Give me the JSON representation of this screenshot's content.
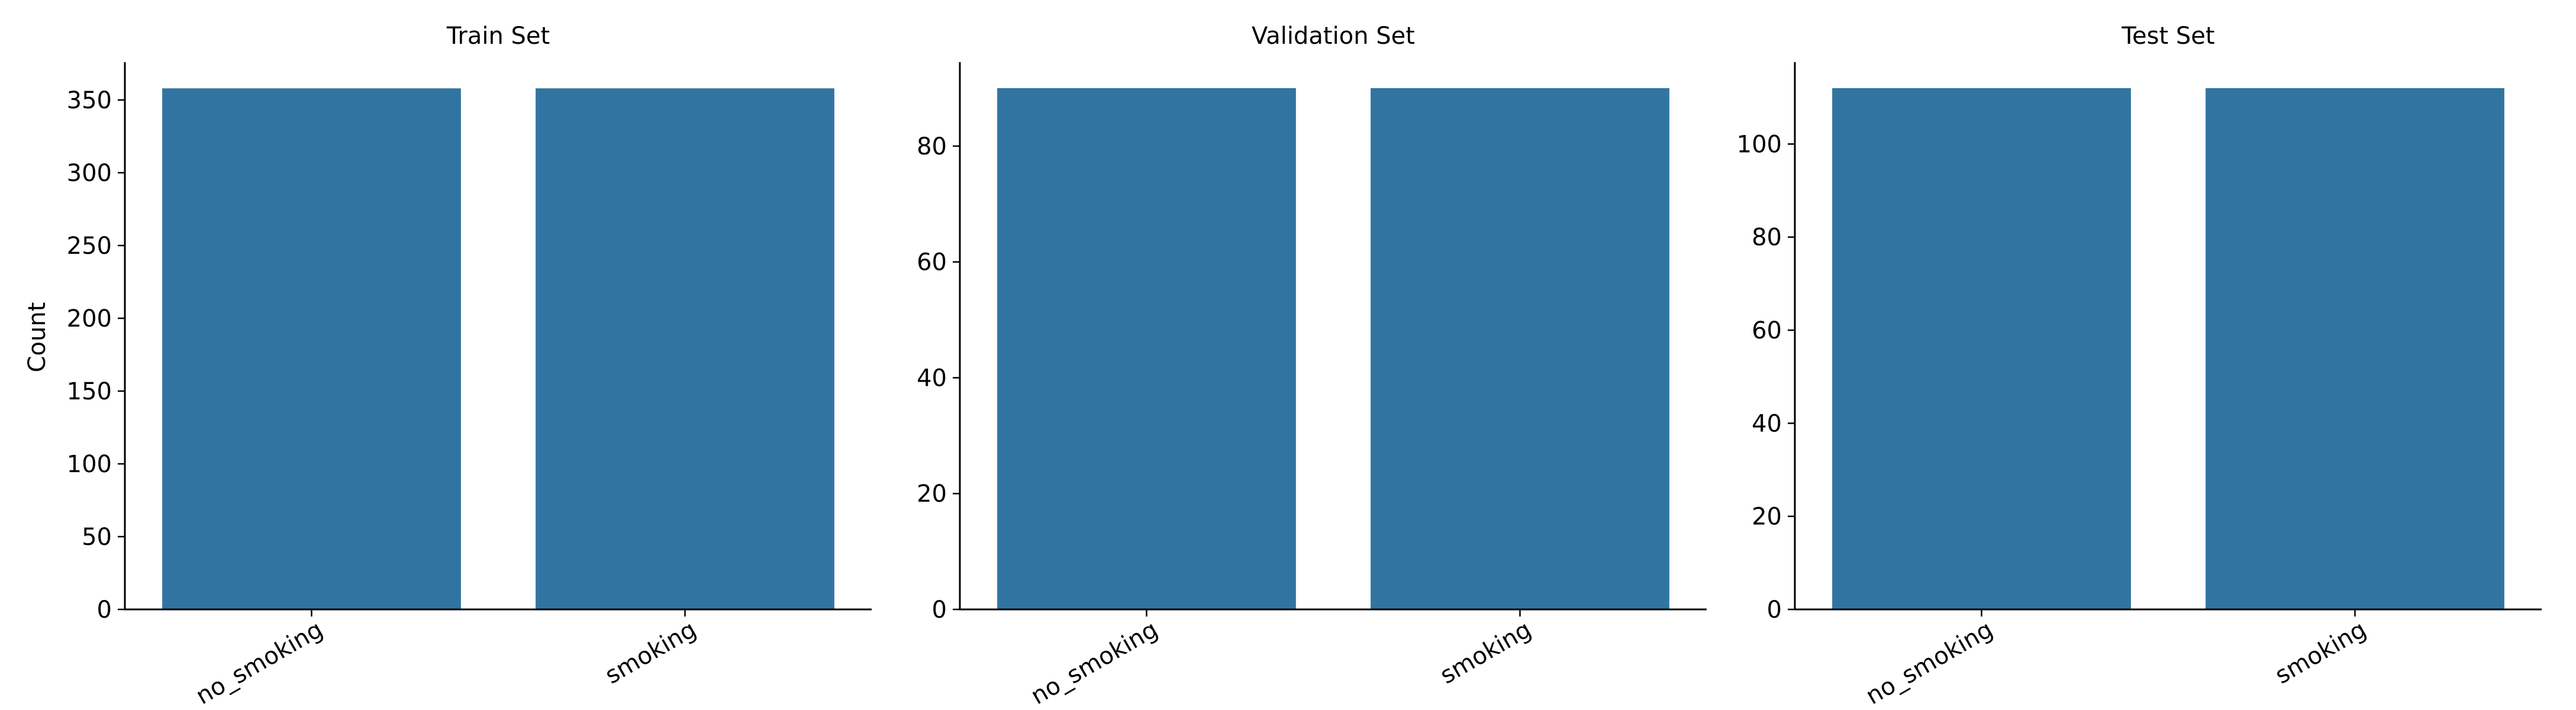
{
  "colors": {
    "bar": "#3274a1",
    "axis": "#000000",
    "background": "#ffffff"
  },
  "chart_data": [
    {
      "type": "bar",
      "title": "Train Set",
      "xlabel": "",
      "ylabel": "Count",
      "categories": [
        "no_smoking",
        "smoking"
      ],
      "values": [
        358,
        358
      ],
      "ylim": [
        0,
        376
      ],
      "yticks": [
        0,
        50,
        100,
        150,
        200,
        250,
        300,
        350
      ],
      "ytick_labels": [
        "0",
        "50",
        "100",
        "150",
        "200",
        "250",
        "300",
        "350"
      ],
      "grid": false,
      "legend": "none"
    },
    {
      "type": "bar",
      "title": "Validation Set",
      "xlabel": "",
      "ylabel": "",
      "categories": [
        "no_smoking",
        "smoking"
      ],
      "values": [
        90,
        90
      ],
      "ylim": [
        0,
        94.5
      ],
      "yticks": [
        0,
        20,
        40,
        60,
        80
      ],
      "ytick_labels": [
        "0",
        "20",
        "40",
        "60",
        "80"
      ],
      "grid": false,
      "legend": "none"
    },
    {
      "type": "bar",
      "title": "Test Set",
      "xlabel": "",
      "ylabel": "",
      "categories": [
        "no_smoking",
        "smoking"
      ],
      "values": [
        112,
        112
      ],
      "ylim": [
        0,
        117.6
      ],
      "yticks": [
        0,
        20,
        40,
        60,
        80,
        100
      ],
      "ytick_labels": [
        "0",
        "20",
        "40",
        "60",
        "80",
        "100"
      ],
      "grid": false,
      "legend": "none"
    }
  ]
}
